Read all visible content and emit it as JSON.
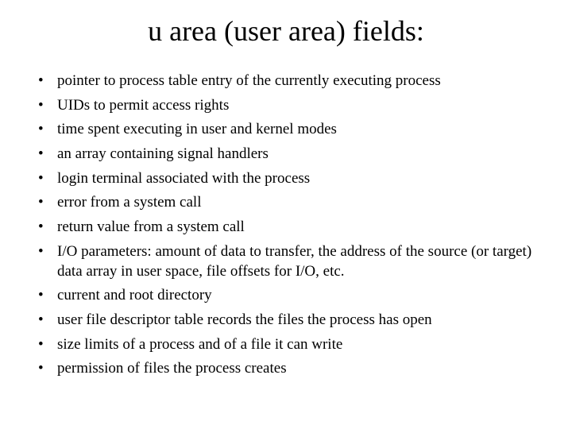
{
  "title": "u area (user area) fields:",
  "title_fontsize": 36,
  "body_fontsize": 19,
  "text_color": "#000000",
  "background_color": "#ffffff",
  "font_family": "Times New Roman",
  "bullets": [
    "pointer to process table entry of the currently executing process",
    "UIDs to permit access rights",
    "time spent executing in user and kernel modes",
    "an array containing signal handlers",
    "login terminal associated with the process",
    "error from a system call",
    "return value from a system call",
    "I/O parameters: amount of data to transfer, the address of the source (or target) data array in user space, file offsets for I/O, etc.",
    "current and root directory",
    "user file descriptor table records the files the process has open",
    "size limits of a process and of a file it can write",
    "permission of files the process creates"
  ]
}
